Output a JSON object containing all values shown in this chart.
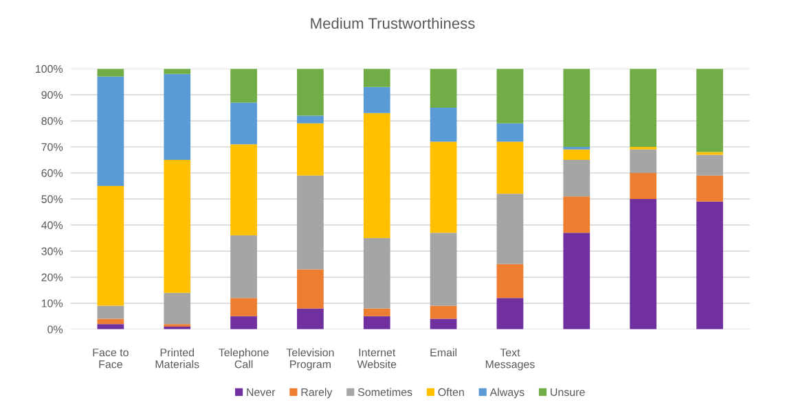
{
  "chart_data": {
    "type": "bar",
    "title": "Medium Trustworthiness",
    "stacked": true,
    "grid": "y",
    "legend": "bottom",
    "categories": [
      "Face to\nFace",
      "Printed\nMaterials",
      "Telephone\nCall",
      "Television\nProgram",
      "Internet\nWebsite",
      "Email",
      "Text\nMessages",
      null,
      null,
      null
    ],
    "series": [
      {
        "name": "Never",
        "color": "#7030a0",
        "values": [
          2,
          1,
          5,
          8,
          5,
          4,
          12,
          37,
          50,
          49
        ]
      },
      {
        "name": "Rarely",
        "color": "#ed7d31",
        "values": [
          2,
          1,
          7,
          15,
          3,
          5,
          13,
          14,
          10,
          10
        ]
      },
      {
        "name": "Sometimes",
        "color": "#a5a5a5",
        "values": [
          5,
          12,
          24,
          36,
          27,
          28,
          27,
          14,
          9,
          8
        ]
      },
      {
        "name": "Often",
        "color": "#ffc000",
        "values": [
          46,
          51,
          35,
          20,
          48,
          35,
          20,
          4,
          1,
          1
        ]
      },
      {
        "name": "Always",
        "color": "#5b9bd5",
        "values": [
          42,
          33,
          16,
          3,
          10,
          13,
          7,
          1,
          0,
          0
        ]
      },
      {
        "name": "Unsure",
        "color": "#70ad47",
        "values": [
          3,
          2,
          13,
          18,
          7,
          15,
          21,
          30,
          30,
          32
        ]
      }
    ],
    "ylim": [
      0,
      100
    ],
    "yticks": [
      {
        "value": 0,
        "label": "0%"
      },
      {
        "value": 10,
        "label": "10%"
      },
      {
        "value": 20,
        "label": "20%"
      },
      {
        "value": 30,
        "label": "30%"
      },
      {
        "value": 40,
        "label": "40%"
      },
      {
        "value": 50,
        "label": "50%"
      },
      {
        "value": 60,
        "label": "60%"
      },
      {
        "value": 70,
        "label": "70%"
      },
      {
        "value": 80,
        "label": "80%"
      },
      {
        "value": 90,
        "label": "90%"
      },
      {
        "value": 100,
        "label": "100%"
      }
    ]
  }
}
